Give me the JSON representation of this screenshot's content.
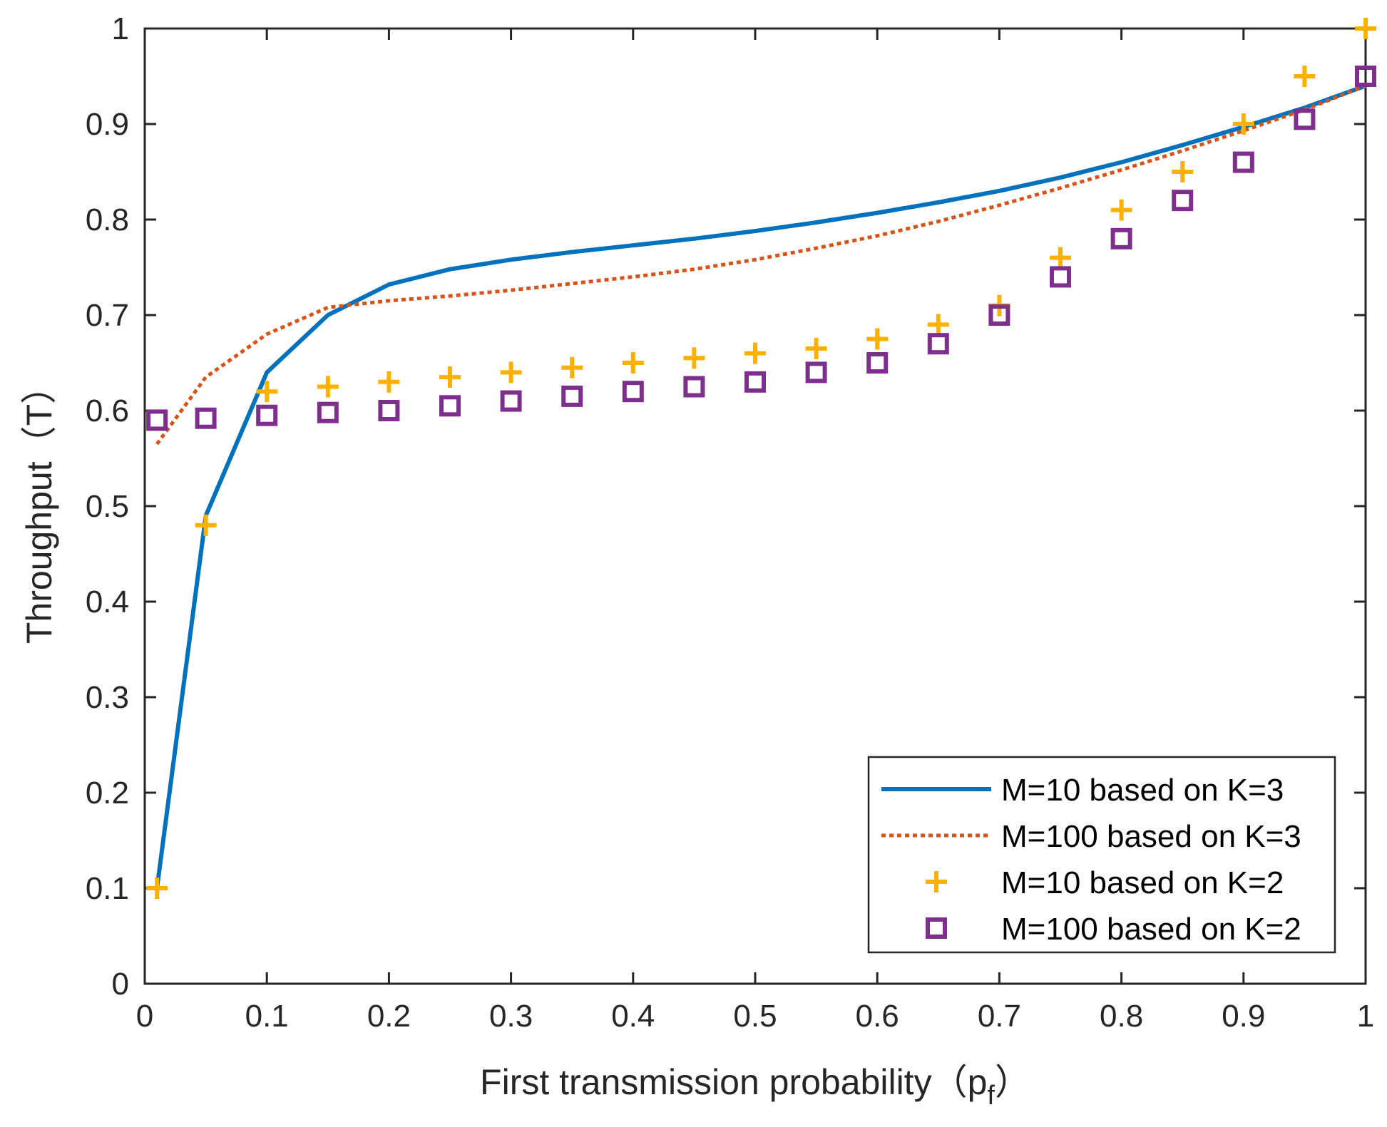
{
  "chart_data": {
    "type": "line",
    "title": "",
    "xlabel": "First transmission probability（p",
    "xlabel_subscript": "f",
    "xlabel_suffix": "）",
    "ylabel": "Throughput（T）",
    "xlim": [
      0,
      1
    ],
    "ylim": [
      0,
      1
    ],
    "xticks": [
      0,
      0.1,
      0.2,
      0.3,
      0.4,
      0.5,
      0.6,
      0.7,
      0.8,
      0.9,
      1
    ],
    "yticks": [
      0,
      0.1,
      0.2,
      0.3,
      0.4,
      0.5,
      0.6,
      0.7,
      0.8,
      0.9,
      1
    ],
    "xtick_labels": [
      "0",
      "0.1",
      "0.2",
      "0.3",
      "0.4",
      "0.5",
      "0.6",
      "0.7",
      "0.8",
      "0.9",
      "1"
    ],
    "ytick_labels": [
      "0",
      "0.1",
      "0.2",
      "0.3",
      "0.4",
      "0.5",
      "0.6",
      "0.7",
      "0.8",
      "0.9",
      "1"
    ],
    "grid": false,
    "legend_position": "bottom-right",
    "series": [
      {
        "name": "M=10 based on K=3",
        "style": "solid",
        "marker": "none",
        "color": "#0072BD",
        "x": [
          0.01,
          0.05,
          0.1,
          0.15,
          0.2,
          0.25,
          0.3,
          0.35,
          0.4,
          0.45,
          0.5,
          0.55,
          0.6,
          0.65,
          0.7,
          0.75,
          0.8,
          0.85,
          0.9,
          0.95,
          1.0
        ],
        "y": [
          0.1,
          0.49,
          0.64,
          0.7,
          0.732,
          0.748,
          0.758,
          0.766,
          0.773,
          0.78,
          0.788,
          0.797,
          0.807,
          0.818,
          0.83,
          0.844,
          0.86,
          0.878,
          0.897,
          0.917,
          0.94
        ]
      },
      {
        "name": "M=100 based on K=3",
        "style": "dotted",
        "marker": "none",
        "color": "#D95319",
        "x": [
          0.01,
          0.05,
          0.1,
          0.15,
          0.2,
          0.25,
          0.3,
          0.35,
          0.4,
          0.45,
          0.5,
          0.55,
          0.6,
          0.65,
          0.7,
          0.75,
          0.8,
          0.85,
          0.9,
          0.95,
          1.0
        ],
        "y": [
          0.565,
          0.635,
          0.68,
          0.708,
          0.715,
          0.72,
          0.726,
          0.733,
          0.74,
          0.748,
          0.758,
          0.77,
          0.783,
          0.798,
          0.815,
          0.833,
          0.852,
          0.872,
          0.893,
          0.915,
          0.94
        ]
      },
      {
        "name": "M=10 based on K=2",
        "style": "none",
        "marker": "plus",
        "color": "#FFB000",
        "x": [
          0.01,
          0.05,
          0.1,
          0.15,
          0.2,
          0.25,
          0.3,
          0.35,
          0.4,
          0.45,
          0.5,
          0.55,
          0.6,
          0.65,
          0.7,
          0.75,
          0.8,
          0.85,
          0.9,
          0.95,
          1.0
        ],
        "y": [
          0.1,
          0.48,
          0.62,
          0.625,
          0.63,
          0.635,
          0.64,
          0.645,
          0.65,
          0.655,
          0.66,
          0.665,
          0.675,
          0.69,
          0.71,
          0.76,
          0.81,
          0.85,
          0.9,
          0.95,
          1.0
        ]
      },
      {
        "name": "M=100 based on K=2",
        "style": "none",
        "marker": "square",
        "color": "#7E2F8E",
        "x": [
          0.01,
          0.05,
          0.1,
          0.15,
          0.2,
          0.25,
          0.3,
          0.35,
          0.4,
          0.45,
          0.5,
          0.55,
          0.6,
          0.65,
          0.7,
          0.75,
          0.8,
          0.85,
          0.9,
          0.95,
          1.0
        ],
        "y": [
          0.59,
          0.592,
          0.595,
          0.598,
          0.6,
          0.605,
          0.61,
          0.615,
          0.62,
          0.625,
          0.63,
          0.64,
          0.65,
          0.67,
          0.7,
          0.74,
          0.78,
          0.82,
          0.86,
          0.905,
          0.95
        ]
      }
    ]
  }
}
